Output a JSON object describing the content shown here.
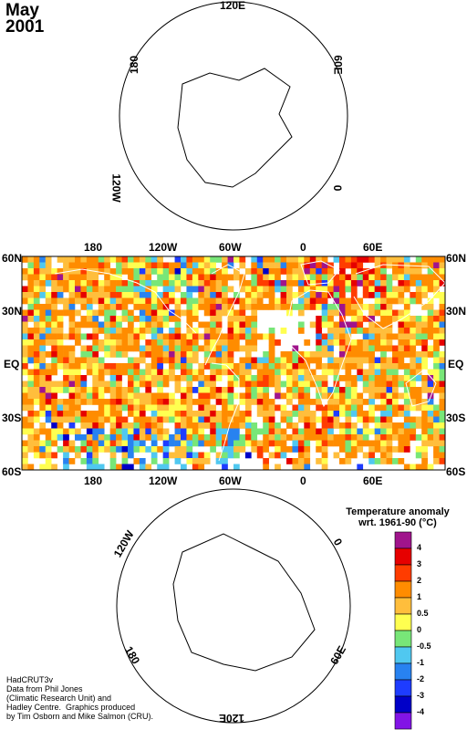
{
  "title": {
    "month": "May",
    "year": "2001"
  },
  "north_map": {
    "lon_labels": [
      "120E",
      "180",
      "60E",
      "120W",
      "0"
    ]
  },
  "world_map": {
    "lon_labels_top": [
      "180",
      "120W",
      "60W",
      "0",
      "60E"
    ],
    "lon_labels_bottom": [
      "180",
      "120W",
      "60W",
      "0",
      "60E"
    ],
    "lat_labels_left": [
      "60N",
      "30N",
      "EQ",
      "30S",
      "60S"
    ],
    "lat_labels_right": [
      "60N",
      "30N",
      "EQ",
      "30S",
      "60S"
    ]
  },
  "south_map": {
    "lon_labels": [
      "120W",
      "0",
      "180",
      "60E",
      "120E"
    ]
  },
  "legend": {
    "title_line1": "Temperature anomaly",
    "title_line2": "wrt. 1961-90  (°C)",
    "labels": [
      "4",
      "3",
      "2",
      "1",
      "0.5",
      "0",
      "-0.5",
      "-1",
      "-2",
      "-3",
      "-4"
    ],
    "colors": [
      "#a0148c",
      "#e60000",
      "#ff3c00",
      "#ff8c00",
      "#ffbe3c",
      "#ffff50",
      "#78e678",
      "#50c8f0",
      "#2882f0",
      "#1e3cff",
      "#0000c8",
      "#8214e6"
    ]
  },
  "credit": "HadCRUT3v\nData from Phil Jones\n(Climatic Research Unit) and\nHadley Centre.  Graphics produced\nby Tim Osborn and Mike Salmon (CRU)."
}
